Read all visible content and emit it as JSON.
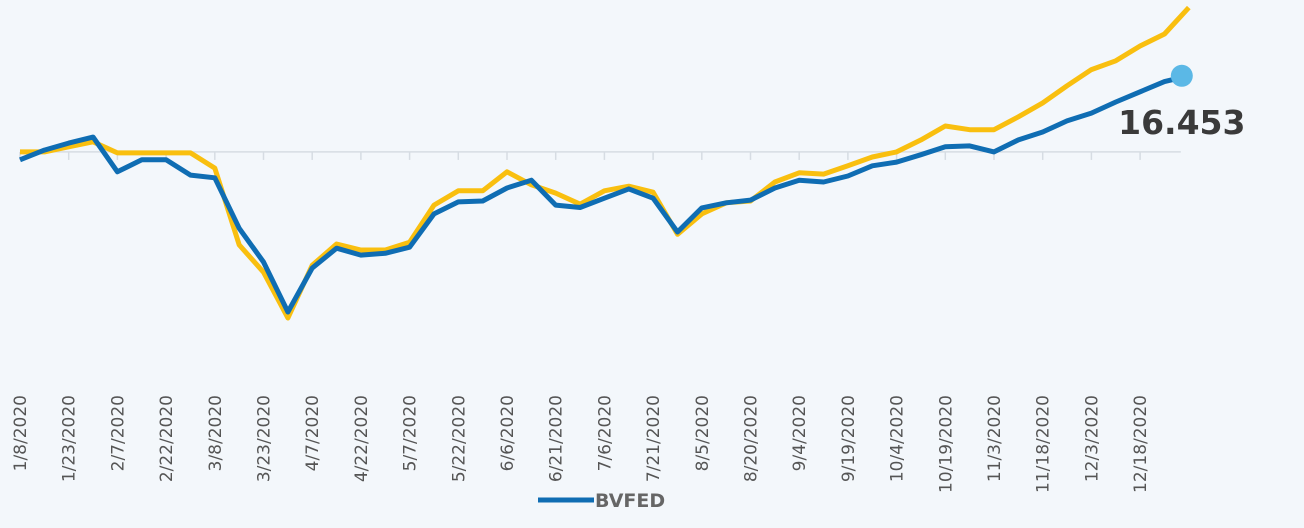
{
  "chart_data": {
    "type": "line",
    "categories": [
      "1/8/2020",
      null,
      "1/23/2020",
      null,
      "2/7/2020",
      null,
      "2/22/2020",
      null,
      "3/8/2020",
      null,
      "3/23/2020",
      null,
      "4/7/2020",
      null,
      "4/22/2020",
      null,
      "5/7/2020",
      null,
      "5/22/2020",
      null,
      "6/6/2020",
      null,
      "6/21/2020",
      null,
      "7/6/2020",
      null,
      "7/21/2020",
      null,
      "8/5/2020",
      null,
      "8/20/2020",
      null,
      "9/4/2020",
      null,
      "9/19/2020",
      null,
      "10/4/2020",
      null,
      "10/19/2020",
      null,
      "11/3/2020",
      null,
      "11/18/2020",
      null,
      "12/3/2020",
      null,
      "12/18/2020",
      null,
      null
    ],
    "series": [
      {
        "name": "BVFED",
        "color": "#0f6db3",
        "values": [
          -1.7,
          0.4,
          1.9,
          3.2,
          -4.3,
          -1.7,
          -1.7,
          -5.0,
          -5.6,
          -16.5,
          -23.8,
          -34.6,
          -25.1,
          -20.8,
          -22.3,
          -21.9,
          -20.6,
          -13.4,
          -10.8,
          -10.6,
          -7.8,
          -6.1,
          -11.5,
          -12.0,
          -10.0,
          -8.0,
          -10.0,
          -17.3,
          -12.1,
          -11.0,
          -10.4,
          -7.8,
          -6.1,
          -6.5,
          -5.2,
          -3.0,
          -2.2,
          -0.6,
          1.1,
          1.3,
          0.0,
          2.6,
          4.3,
          6.7,
          8.4,
          10.8,
          13.0,
          15.2,
          16.453
        ]
      },
      {
        "color": "#f9bf0f",
        "values": [
          0,
          0,
          1.1,
          2.2,
          -0.2,
          -0.2,
          -0.2,
          -0.2,
          -3.5,
          -20.1,
          -26.0,
          -35.9,
          -24.5,
          -19.9,
          -21.2,
          -21.2,
          -19.5,
          -11.5,
          -8.4,
          -8.4,
          -4.3,
          -7.1,
          -8.9,
          -11.3,
          -8.4,
          -7.4,
          -8.7,
          -17.8,
          -13.4,
          -11.0,
          -10.6,
          -6.5,
          -4.5,
          -4.8,
          -3.0,
          -1.1,
          0.0,
          2.6,
          5.6,
          4.8,
          4.8,
          7.6,
          10.6,
          14.3,
          17.8,
          19.7,
          22.9,
          25.5,
          31.2
        ]
      }
    ],
    "ylim": [
      -40,
      35
    ],
    "endpoint_color": "#5bb8e6"
  }
}
